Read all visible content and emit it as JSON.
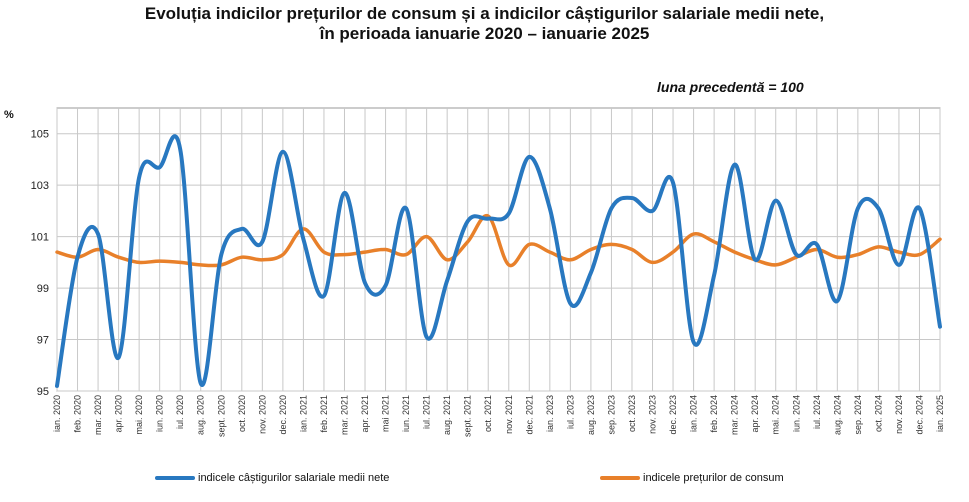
{
  "title_line1": "Evoluția indicilor prețurilor de consum și a indicilor câștigurilor salariale medii nete,",
  "title_line2": "în perioada ianuarie 2020 – ianuarie 2025",
  "subtitle": "luna precedentă = 100",
  "ylabel": "%",
  "colors": {
    "wages": "#2878c0",
    "prices": "#e8802a",
    "grid": "#c8c8c8"
  },
  "chart_data": {
    "type": "line",
    "ylim": [
      95,
      106
    ],
    "yticks": [
      95,
      97,
      99,
      101,
      103,
      105
    ],
    "grid": true,
    "legend_position": "bottom",
    "categories": [
      "ian. 2020",
      "feb. 2020",
      "mar. 2020",
      "apr. 2020",
      "mai. 2020",
      "iun. 2020",
      "iul. 2020",
      "aug. 2020",
      "sept. 2020",
      "oct. 2020",
      "nov. 2020",
      "dec. 2020",
      "ian. 2021",
      "feb. 2021",
      "mar. 2021",
      "apr. 2021",
      "mai 2021",
      "iun. 2021",
      "iul. 2021",
      "aug. 2021",
      "sept. 2021",
      "oct. 2021",
      "nov. 2021",
      "dec. 2021",
      "ian. 2023",
      "iul. 2023",
      "aug. 2023",
      "sep. 2023",
      "oct. 2023",
      "nov. 2023",
      "dec. 2023",
      "ian. 2024",
      "feb. 2024",
      "mar. 2024",
      "apr. 2024",
      "mai. 2024",
      "iun. 2024",
      "iul. 2024",
      "aug. 2024",
      "sep. 2024",
      "oct. 2024",
      "nov. 2024",
      "dec. 2024",
      "ian. 2025"
    ],
    "series": [
      {
        "name": "indicele câștigurilor salariale medii nete",
        "color": "#2878c0",
        "values": [
          95.2,
          100.2,
          101.1,
          96.3,
          103.3,
          103.7,
          104.4,
          95.3,
          100.3,
          101.3,
          100.8,
          104.3,
          100.9,
          98.7,
          102.7,
          99.2,
          99.1,
          102.1,
          97.1,
          99.3,
          101.6,
          101.7,
          101.9,
          104.1,
          102.1,
          98.4,
          99.6,
          102.1,
          102.5,
          102.0,
          103.1,
          96.9,
          99.5,
          103.8,
          100.1,
          102.4,
          100.3,
          100.7,
          98.5,
          102.1,
          102.1,
          99.9,
          102.1,
          97.5
        ]
      },
      {
        "name": "indicele prețurilor de consum",
        "color": "#e8802a",
        "values": [
          100.4,
          100.2,
          100.5,
          100.2,
          100.0,
          100.05,
          100.0,
          99.9,
          99.9,
          100.2,
          100.1,
          100.3,
          101.3,
          100.4,
          100.3,
          100.4,
          100.5,
          100.3,
          101.0,
          100.1,
          100.8,
          101.8,
          99.9,
          100.7,
          100.4,
          100.1,
          100.5,
          100.7,
          100.5,
          100.0,
          100.4,
          101.1,
          100.8,
          100.4,
          100.1,
          99.9,
          100.2,
          100.5,
          100.2,
          100.3,
          100.6,
          100.4,
          100.3,
          100.9
        ]
      }
    ]
  }
}
